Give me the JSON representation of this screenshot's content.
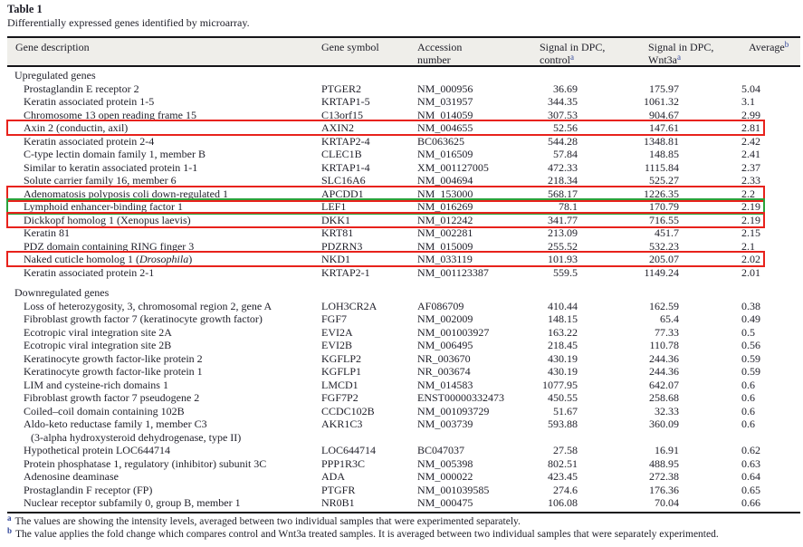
{
  "title": "Table 1",
  "caption": "Differentially expressed genes identified by microarray.",
  "colors": {
    "highlight_red": "#e8221c",
    "highlight_green": "#2aa23a",
    "superscript_blue": "#32479b",
    "header_background": "#efeeea",
    "text": "#21212b"
  },
  "header": {
    "col1": "Gene description",
    "col2": "Gene symbol",
    "col3_line1": "Accession",
    "col3_line2": "number",
    "col4_line1": "Signal in DPC,",
    "col4_line2": "control",
    "col4_sup": "a",
    "col5_line1": "Signal in DPC,",
    "col5_line2": "Wnt3a",
    "col5_sup": "a",
    "col6": "Average",
    "col6_sup": "b"
  },
  "sections": [
    {
      "label": "Upregulated genes",
      "rows": [
        {
          "desc": "Prostaglandin E receptor 2",
          "symbol": "PTGER2",
          "accession": "NM_000956",
          "control": "36.69",
          "wnt3a": "175.97",
          "average": "5.04"
        },
        {
          "desc": "Keratin associated protein 1-5",
          "symbol": "KRTAP1-5",
          "accession": "NM_031957",
          "control": "344.35",
          "wnt3a": "1061.32",
          "average": "3.1"
        },
        {
          "desc": "Chromosome 13 open reading frame 15",
          "symbol": "C13orf15",
          "accession": "NM_014059",
          "control": "307.53",
          "wnt3a": "904.67",
          "average": "2.99"
        },
        {
          "desc": "Axin 2 (conductin, axil)",
          "symbol": "AXIN2",
          "accession": "NM_004655",
          "control": "52.56",
          "wnt3a": "147.61",
          "average": "2.81",
          "highlight": "red"
        },
        {
          "desc": "Keratin associated protein 2-4",
          "symbol": "KRTAP2-4",
          "accession": "BC063625",
          "control": "544.28",
          "wnt3a": "1348.81",
          "average": "2.42"
        },
        {
          "desc": "C-type lectin domain family 1, member B",
          "symbol": "CLEC1B",
          "accession": "NM_016509",
          "control": "57.84",
          "wnt3a": "148.85",
          "average": "2.41"
        },
        {
          "desc": "Similar to keratin associated protein 1-1",
          "symbol": "KRTAP1-4",
          "accession": "XM_001127005",
          "control": "472.33",
          "wnt3a": "1115.84",
          "average": "2.37"
        },
        {
          "desc": "Solute carrier family 16, member 6",
          "symbol": "SLC16A6",
          "accession": "NM_004694",
          "control": "218.34",
          "wnt3a": "525.27",
          "average": "2.33"
        },
        {
          "desc": "Adenomatosis polyposis coli down-regulated 1",
          "symbol": "APCDD1",
          "accession": "NM_153000",
          "control": "568.17",
          "wnt3a": "1226.35",
          "average": "2.2",
          "highlight": "red"
        },
        {
          "desc": "Lymphoid enhancer-binding factor 1",
          "symbol": "LEF1",
          "accession": "NM_016269",
          "control": "78.1",
          "wnt3a": "170.79",
          "average": "2.19",
          "highlight": "green"
        },
        {
          "desc": "Dickkopf homolog 1 (Xenopus laevis)",
          "symbol": "DKK1",
          "accession": "NM_012242",
          "control": "341.77",
          "wnt3a": "716.55",
          "average": "2.19",
          "highlight": "red"
        },
        {
          "desc": "Keratin 81",
          "symbol": "KRT81",
          "accession": "NM_002281",
          "control": "213.09",
          "wnt3a": "451.7",
          "average": "2.15"
        },
        {
          "desc": "PDZ domain containing RING finger 3",
          "symbol": "PDZRN3",
          "accession": "NM_015009",
          "control": "255.52",
          "wnt3a": "532.23",
          "average": "2.1"
        },
        {
          "desc_parts": [
            {
              "text": "Naked cuticle homolog 1 (",
              "italic": false
            },
            {
              "text": "Drosophila",
              "italic": true
            },
            {
              "text": ")",
              "italic": false
            }
          ],
          "symbol": "NKD1",
          "accession": "NM_033119",
          "control": "101.93",
          "wnt3a": "205.07",
          "average": "2.02",
          "highlight": "red"
        },
        {
          "desc": "Keratin associated protein 2-1",
          "symbol": "KRTAP2-1",
          "accession": "NM_001123387",
          "control": "559.5",
          "wnt3a": "1149.24",
          "average": "2.01"
        }
      ]
    },
    {
      "label": "Downregulated genes",
      "rows": [
        {
          "desc": "Loss of heterozygosity, 3, chromosomal region 2, gene A",
          "symbol": "LOH3CR2A",
          "accession": "AF086709",
          "control": "410.44",
          "wnt3a": "162.59",
          "average": "0.38"
        },
        {
          "desc": "Fibroblast growth factor 7 (keratinocyte growth factor)",
          "symbol": "FGF7",
          "accession": "NM_002009",
          "control": "148.15",
          "wnt3a": "65.4",
          "average": "0.49"
        },
        {
          "desc": "Ecotropic viral integration site 2A",
          "symbol": "EVI2A",
          "accession": "NM_001003927",
          "control": "163.22",
          "wnt3a": "77.33",
          "average": "0.5"
        },
        {
          "desc": "Ecotropic viral integration site 2B",
          "symbol": "EVI2B",
          "accession": "NM_006495",
          "control": "218.45",
          "wnt3a": "110.78",
          "average": "0.56"
        },
        {
          "desc": "Keratinocyte growth factor-like protein 2",
          "symbol": "KGFLP2",
          "accession": "NR_003670",
          "control": "430.19",
          "wnt3a": "244.36",
          "average": "0.59"
        },
        {
          "desc": "Keratinocyte growth factor-like protein 1",
          "symbol": "KGFLP1",
          "accession": "NR_003674",
          "control": "430.19",
          "wnt3a": "244.36",
          "average": "0.59"
        },
        {
          "desc": "LIM and cysteine-rich domains 1",
          "symbol": "LMCD1",
          "accession": "NM_014583",
          "control": "1077.95",
          "wnt3a": "642.07",
          "average": "0.6"
        },
        {
          "desc": "Fibroblast growth factor 7 pseudogene 2",
          "symbol": "FGF7P2",
          "accession": "ENST00000332473",
          "control": "450.55",
          "wnt3a": "258.68",
          "average": "0.6"
        },
        {
          "desc": "Coiled–coil domain containing 102B",
          "symbol": "CCDC102B",
          "accession": "NM_001093729",
          "control": "51.67",
          "wnt3a": "32.33",
          "average": "0.6"
        },
        {
          "desc": "Aldo-keto reductase family 1, member C3",
          "desc_line2": "(3-alpha hydroxysteroid dehydrogenase, type II)",
          "symbol": "AKR1C3",
          "accession": "NM_003739",
          "control": "593.88",
          "wnt3a": "360.09",
          "average": "0.6"
        },
        {
          "desc": "Hypothetical protein LOC644714",
          "symbol": "LOC644714",
          "accession": "BC047037",
          "control": "27.58",
          "wnt3a": "16.91",
          "average": "0.62"
        },
        {
          "desc": "Protein phosphatase 1, regulatory (inhibitor) subunit 3C",
          "symbol": "PPP1R3C",
          "accession": "NM_005398",
          "control": "802.51",
          "wnt3a": "488.95",
          "average": "0.63"
        },
        {
          "desc": "Adenosine deaminase",
          "symbol": "ADA",
          "accession": "NM_000022",
          "control": "423.45",
          "wnt3a": "272.38",
          "average": "0.64"
        },
        {
          "desc": "Prostaglandin F receptor (FP)",
          "symbol": "PTGFR",
          "accession": "NM_001039585",
          "control": "274.6",
          "wnt3a": "176.36",
          "average": "0.65"
        },
        {
          "desc": "Nuclear receptor subfamily 0, group B, member 1",
          "symbol": "NR0B1",
          "accession": "NM_000475",
          "control": "106.08",
          "wnt3a": "70.04",
          "average": "0.66"
        }
      ]
    }
  ],
  "footnotes": [
    {
      "marker": "a",
      "text": "The values are showing the intensity levels, averaged between two individual samples that were experimented separately."
    },
    {
      "marker": "b",
      "text": "The value applies the fold change which compares control and Wnt3a treated samples. It is averaged between two individual samples that were separately experimented."
    }
  ]
}
